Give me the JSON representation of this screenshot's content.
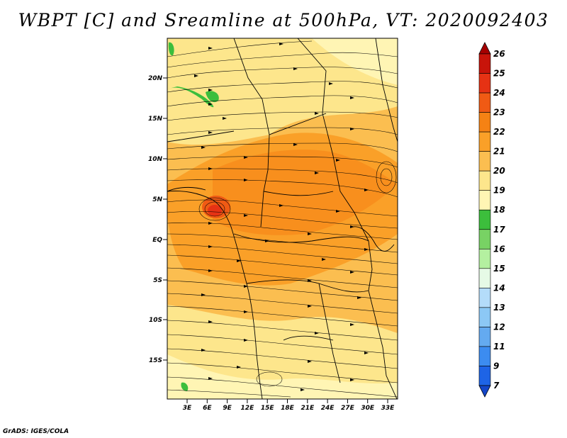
{
  "title": "WBPT [C] and Sreamline at 500hPa, VT: 2020092403",
  "credit": "GrADS: IGES/COLA",
  "map": {
    "lat_labels": [
      "20N",
      "15N",
      "10N",
      "5N",
      "EQ",
      "5S",
      "10S",
      "15S"
    ],
    "lon_labels": [
      "3E",
      "6E",
      "9E",
      "12E",
      "15E",
      "18E",
      "21E",
      "24E",
      "27E",
      "30E",
      "33E"
    ]
  },
  "colorbar": {
    "levels": [
      "26",
      "25",
      "24",
      "23",
      "22",
      "21",
      "20",
      "19",
      "18",
      "17",
      "16",
      "15",
      "14",
      "13",
      "12",
      "11",
      "9",
      "7"
    ],
    "colors": [
      "#a50000",
      "#c8140a",
      "#e63214",
      "#f05a14",
      "#f58214",
      "#faa028",
      "#fbbe50",
      "#fde68c",
      "#fff5b4",
      "#3cbe3c",
      "#78d264",
      "#b4f0a0",
      "#e6fae6",
      "#b4dcfa",
      "#8cc8f5",
      "#64aaf0",
      "#3c8cf0",
      "#1e64e6",
      "#1446c8"
    ]
  }
}
